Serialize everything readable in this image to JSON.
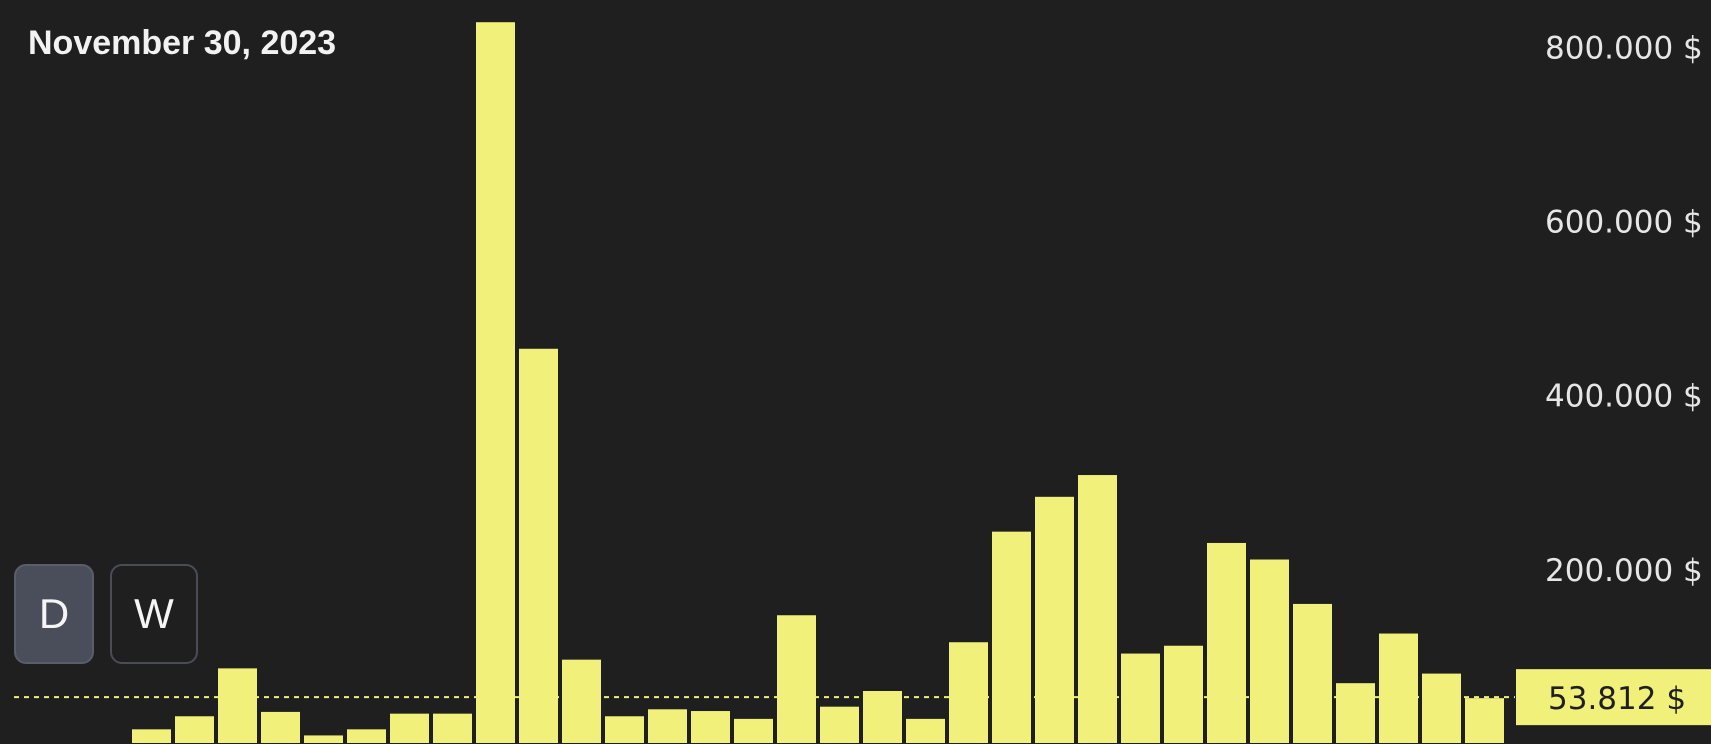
{
  "header": {
    "date": "November 30, 2023"
  },
  "timeframes": [
    {
      "label": "D",
      "active": true
    },
    {
      "label": "W",
      "active": false
    }
  ],
  "colors": {
    "background": "#1f1f20",
    "bar": "#f0f07a",
    "bar_edge": "#1f1f20",
    "axis_text": "#e6e6e6",
    "marker_bg": "#f0f07a",
    "marker_text": "#1f1f20"
  },
  "chart_data": {
    "type": "bar",
    "ylim": [
      0,
      840000
    ],
    "y_ticks": [
      {
        "value": 200000,
        "label": "200.000 $"
      },
      {
        "value": 400000,
        "label": "400.000 $"
      },
      {
        "value": 600000,
        "label": "600.000 $"
      },
      {
        "value": 800000,
        "label": "800.000 $"
      }
    ],
    "values": [
      1000,
      1000,
      1000,
      18000,
      33000,
      88000,
      38000,
      11000,
      18000,
      36000,
      36000,
      830000,
      455000,
      98000,
      33000,
      41000,
      39000,
      30000,
      149000,
      44000,
      62000,
      30000,
      118000,
      245000,
      285000,
      310000,
      105000,
      114000,
      232000,
      213000,
      162000,
      71000,
      128000,
      82000,
      53812
    ],
    "current_value": 53812,
    "current_label": "53.812 $",
    "grid": false
  }
}
